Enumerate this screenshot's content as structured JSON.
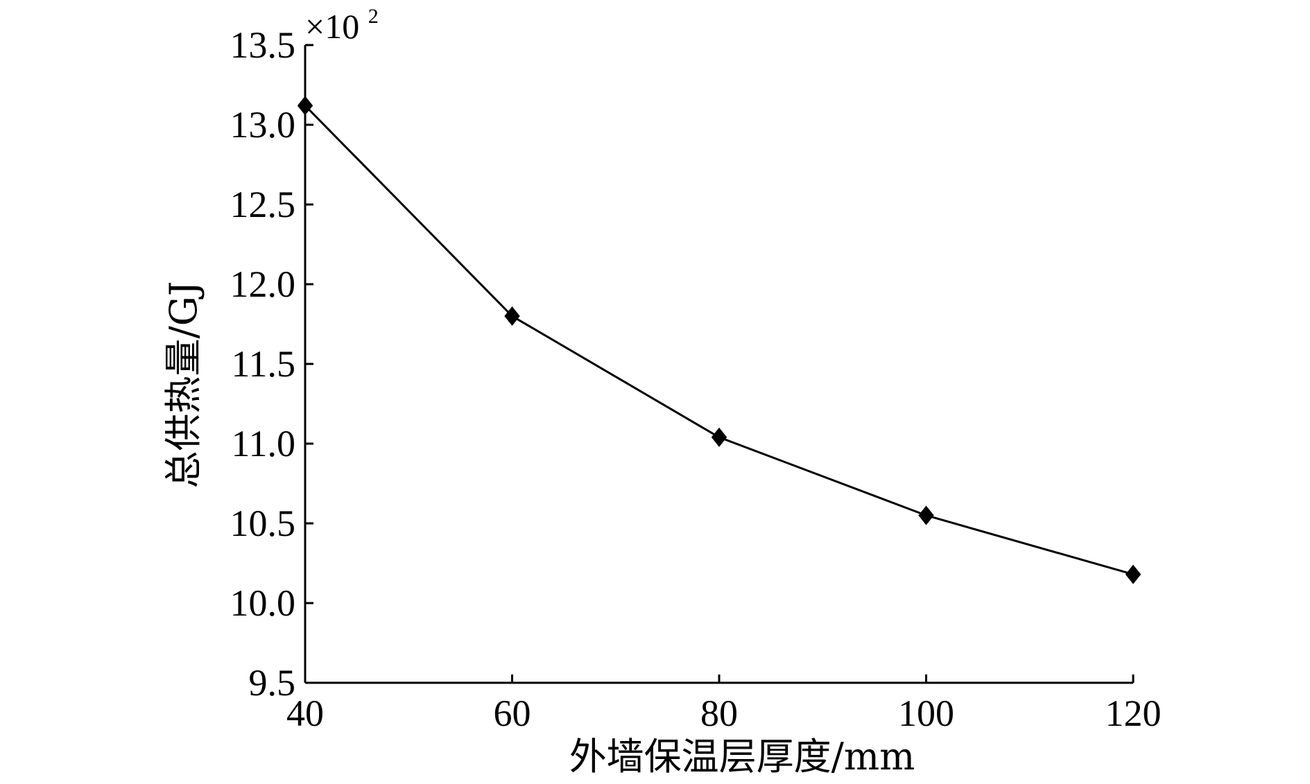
{
  "chart_data": {
    "type": "line",
    "xlabel": "外墙保温层厚度/mm",
    "ylabel": "总供热量/GJ",
    "y_multiplier": "×10",
    "y_multiplier_exp": "2",
    "x": [
      40,
      60,
      80,
      100,
      120
    ],
    "series": [
      {
        "values": [
          13.12,
          11.8,
          11.04,
          10.55,
          10.18
        ],
        "marker": "diamond",
        "color": "#000000"
      }
    ],
    "xlim": [
      40,
      120
    ],
    "ylim": [
      9.5,
      13.5
    ],
    "x_ticks": [
      "40",
      "60",
      "80",
      "100",
      "120"
    ],
    "y_ticks": [
      "9.5",
      "10.0",
      "10.5",
      "11.0",
      "11.5",
      "12.0",
      "12.5",
      "13.0",
      "13.5"
    ],
    "grid": false,
    "legend": "none"
  }
}
